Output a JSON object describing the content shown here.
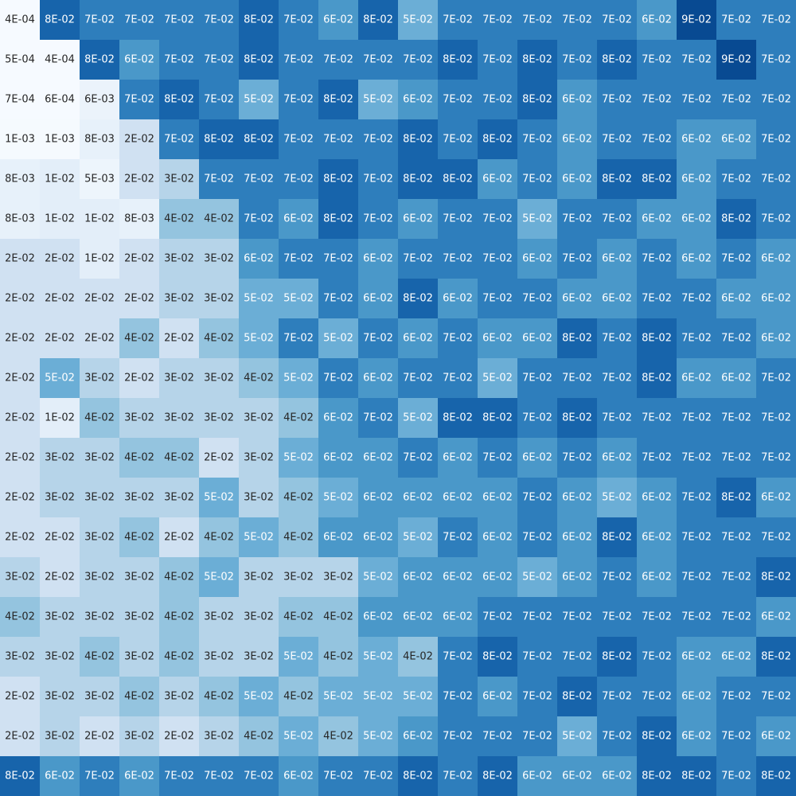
{
  "chart_data": {
    "type": "heatmap",
    "colormap": [
      "#f7fbff",
      "#deebf7",
      "#c6dbef",
      "#9ecae1",
      "#6baed6",
      "#4292c6",
      "#2171b5",
      "#08519c",
      "#08306b"
    ],
    "clim": [
      0,
      0.1
    ],
    "values": [
      [
        0.0004,
        0.08,
        0.07,
        0.07,
        0.07,
        0.07,
        0.08,
        0.07,
        0.06,
        0.08,
        0.05,
        0.07,
        0.07,
        0.07,
        0.07,
        0.07,
        0.06,
        0.09,
        0.07,
        0.07
      ],
      [
        0.0005,
        0.0004,
        0.08,
        0.06,
        0.07,
        0.07,
        0.08,
        0.07,
        0.07,
        0.07,
        0.07,
        0.08,
        0.07,
        0.08,
        0.07,
        0.08,
        0.07,
        0.07,
        0.09,
        0.07
      ],
      [
        0.0007,
        0.0006,
        0.006,
        0.07,
        0.08,
        0.07,
        0.05,
        0.07,
        0.08,
        0.05,
        0.06,
        0.07,
        0.07,
        0.08,
        0.06,
        0.07,
        0.07,
        0.07,
        0.07,
        0.07
      ],
      [
        0.001,
        0.001,
        0.008,
        0.02,
        0.07,
        0.08,
        0.08,
        0.07,
        0.07,
        0.07,
        0.08,
        0.07,
        0.08,
        0.07,
        0.06,
        0.07,
        0.07,
        0.06,
        0.06,
        0.07
      ],
      [
        0.008,
        0.01,
        0.005,
        0.02,
        0.03,
        0.07,
        0.07,
        0.07,
        0.08,
        0.07,
        0.08,
        0.08,
        0.06,
        0.07,
        0.06,
        0.08,
        0.08,
        0.06,
        0.07,
        0.07
      ],
      [
        0.008,
        0.01,
        0.01,
        0.008,
        0.04,
        0.04,
        0.07,
        0.06,
        0.08,
        0.07,
        0.06,
        0.07,
        0.07,
        0.05,
        0.07,
        0.07,
        0.06,
        0.06,
        0.08,
        0.07
      ],
      [
        0.02,
        0.02,
        0.01,
        0.02,
        0.03,
        0.03,
        0.06,
        0.07,
        0.07,
        0.06,
        0.07,
        0.07,
        0.07,
        0.06,
        0.07,
        0.06,
        0.07,
        0.06,
        0.07,
        0.06
      ],
      [
        0.02,
        0.02,
        0.02,
        0.02,
        0.03,
        0.03,
        0.05,
        0.05,
        0.07,
        0.06,
        0.08,
        0.06,
        0.07,
        0.07,
        0.06,
        0.06,
        0.07,
        0.07,
        0.06,
        0.06
      ],
      [
        0.02,
        0.02,
        0.02,
        0.04,
        0.02,
        0.04,
        0.05,
        0.07,
        0.05,
        0.07,
        0.06,
        0.07,
        0.06,
        0.06,
        0.08,
        0.07,
        0.08,
        0.07,
        0.07,
        0.06
      ],
      [
        0.02,
        0.05,
        0.03,
        0.02,
        0.03,
        0.03,
        0.04,
        0.05,
        0.07,
        0.06,
        0.07,
        0.07,
        0.05,
        0.07,
        0.07,
        0.07,
        0.08,
        0.06,
        0.06,
        0.07
      ],
      [
        0.02,
        0.01,
        0.04,
        0.03,
        0.03,
        0.03,
        0.03,
        0.04,
        0.06,
        0.07,
        0.05,
        0.08,
        0.08,
        0.07,
        0.08,
        0.07,
        0.07,
        0.07,
        0.07,
        0.07
      ],
      [
        0.02,
        0.03,
        0.03,
        0.04,
        0.04,
        0.02,
        0.03,
        0.05,
        0.06,
        0.06,
        0.07,
        0.06,
        0.07,
        0.06,
        0.07,
        0.06,
        0.07,
        0.07,
        0.07,
        0.07
      ],
      [
        0.02,
        0.03,
        0.03,
        0.03,
        0.03,
        0.05,
        0.03,
        0.04,
        0.05,
        0.06,
        0.06,
        0.06,
        0.06,
        0.07,
        0.06,
        0.05,
        0.06,
        0.07,
        0.08,
        0.06
      ],
      [
        0.02,
        0.02,
        0.03,
        0.04,
        0.02,
        0.04,
        0.05,
        0.04,
        0.06,
        0.06,
        0.05,
        0.07,
        0.06,
        0.07,
        0.06,
        0.08,
        0.06,
        0.07,
        0.07,
        0.07
      ],
      [
        0.03,
        0.02,
        0.03,
        0.03,
        0.04,
        0.05,
        0.03,
        0.03,
        0.03,
        0.05,
        0.06,
        0.06,
        0.06,
        0.05,
        0.06,
        0.07,
        0.06,
        0.07,
        0.07,
        0.08
      ],
      [
        0.04,
        0.03,
        0.03,
        0.03,
        0.04,
        0.03,
        0.03,
        0.04,
        0.04,
        0.06,
        0.06,
        0.06,
        0.07,
        0.07,
        0.07,
        0.07,
        0.07,
        0.07,
        0.07,
        0.06
      ],
      [
        0.03,
        0.03,
        0.04,
        0.03,
        0.04,
        0.03,
        0.03,
        0.05,
        0.04,
        0.05,
        0.04,
        0.07,
        0.08,
        0.07,
        0.07,
        0.08,
        0.07,
        0.06,
        0.06,
        0.08
      ],
      [
        0.02,
        0.03,
        0.03,
        0.04,
        0.03,
        0.04,
        0.05,
        0.04,
        0.05,
        0.05,
        0.05,
        0.07,
        0.06,
        0.07,
        0.08,
        0.07,
        0.07,
        0.06,
        0.07,
        0.07
      ],
      [
        0.02,
        0.03,
        0.02,
        0.03,
        0.02,
        0.03,
        0.04,
        0.05,
        0.04,
        0.05,
        0.06,
        0.07,
        0.07,
        0.07,
        0.05,
        0.07,
        0.08,
        0.06,
        0.07,
        0.06
      ],
      [
        0.08,
        0.06,
        0.07,
        0.06,
        0.07,
        0.07,
        0.07,
        0.06,
        0.07,
        0.07,
        0.08,
        0.07,
        0.08,
        0.06,
        0.06,
        0.06,
        0.08,
        0.08,
        0.07,
        0.08
      ]
    ],
    "value_labels": [
      [
        "4E-04",
        "8E-02",
        "7E-02",
        "7E-02",
        "7E-02",
        "7E-02",
        "8E-02",
        "7E-02",
        "6E-02",
        "8E-02",
        "5E-02",
        "7E-02",
        "7E-02",
        "7E-02",
        "7E-02",
        "7E-02",
        "6E-02",
        "9E-02",
        "7E-02",
        "7E-02"
      ],
      [
        "5E-04",
        "4E-04",
        "8E-02",
        "6E-02",
        "7E-02",
        "7E-02",
        "8E-02",
        "7E-02",
        "7E-02",
        "7E-02",
        "7E-02",
        "8E-02",
        "7E-02",
        "8E-02",
        "7E-02",
        "8E-02",
        "7E-02",
        "7E-02",
        "9E-02",
        "7E-02"
      ],
      [
        "7E-04",
        "6E-04",
        "6E-03",
        "7E-02",
        "8E-02",
        "7E-02",
        "5E-02",
        "7E-02",
        "8E-02",
        "5E-02",
        "6E-02",
        "7E-02",
        "7E-02",
        "8E-02",
        "6E-02",
        "7E-02",
        "7E-02",
        "7E-02",
        "7E-02",
        "7E-02"
      ],
      [
        "1E-03",
        "1E-03",
        "8E-03",
        "2E-02",
        "7E-02",
        "8E-02",
        "8E-02",
        "7E-02",
        "7E-02",
        "7E-02",
        "8E-02",
        "7E-02",
        "8E-02",
        "7E-02",
        "6E-02",
        "7E-02",
        "7E-02",
        "6E-02",
        "6E-02",
        "7E-02"
      ],
      [
        "8E-03",
        "1E-02",
        "5E-03",
        "2E-02",
        "3E-02",
        "7E-02",
        "7E-02",
        "7E-02",
        "8E-02",
        "7E-02",
        "8E-02",
        "8E-02",
        "6E-02",
        "7E-02",
        "6E-02",
        "8E-02",
        "8E-02",
        "6E-02",
        "7E-02",
        "7E-02"
      ],
      [
        "8E-03",
        "1E-02",
        "1E-02",
        "8E-03",
        "4E-02",
        "4E-02",
        "7E-02",
        "6E-02",
        "8E-02",
        "7E-02",
        "6E-02",
        "7E-02",
        "7E-02",
        "5E-02",
        "7E-02",
        "7E-02",
        "6E-02",
        "6E-02",
        "8E-02",
        "7E-02"
      ],
      [
        "2E-02",
        "2E-02",
        "1E-02",
        "2E-02",
        "3E-02",
        "3E-02",
        "6E-02",
        "7E-02",
        "7E-02",
        "6E-02",
        "7E-02",
        "7E-02",
        "7E-02",
        "6E-02",
        "7E-02",
        "6E-02",
        "7E-02",
        "6E-02",
        "7E-02",
        "6E-02"
      ],
      [
        "2E-02",
        "2E-02",
        "2E-02",
        "2E-02",
        "3E-02",
        "3E-02",
        "5E-02",
        "5E-02",
        "7E-02",
        "6E-02",
        "8E-02",
        "6E-02",
        "7E-02",
        "7E-02",
        "6E-02",
        "6E-02",
        "7E-02",
        "7E-02",
        "6E-02",
        "6E-02"
      ],
      [
        "2E-02",
        "2E-02",
        "2E-02",
        "4E-02",
        "2E-02",
        "4E-02",
        "5E-02",
        "7E-02",
        "5E-02",
        "7E-02",
        "6E-02",
        "7E-02",
        "6E-02",
        "6E-02",
        "8E-02",
        "7E-02",
        "8E-02",
        "7E-02",
        "7E-02",
        "6E-02"
      ],
      [
        "2E-02",
        "5E-02",
        "3E-02",
        "2E-02",
        "3E-02",
        "3E-02",
        "4E-02",
        "5E-02",
        "7E-02",
        "6E-02",
        "7E-02",
        "7E-02",
        "5E-02",
        "7E-02",
        "7E-02",
        "7E-02",
        "8E-02",
        "6E-02",
        "6E-02",
        "7E-02"
      ],
      [
        "2E-02",
        "1E-02",
        "4E-02",
        "3E-02",
        "3E-02",
        "3E-02",
        "3E-02",
        "4E-02",
        "6E-02",
        "7E-02",
        "5E-02",
        "8E-02",
        "8E-02",
        "7E-02",
        "8E-02",
        "7E-02",
        "7E-02",
        "7E-02",
        "7E-02",
        "7E-02"
      ],
      [
        "2E-02",
        "3E-02",
        "3E-02",
        "4E-02",
        "4E-02",
        "2E-02",
        "3E-02",
        "5E-02",
        "6E-02",
        "6E-02",
        "7E-02",
        "6E-02",
        "7E-02",
        "6E-02",
        "7E-02",
        "6E-02",
        "7E-02",
        "7E-02",
        "7E-02",
        "7E-02"
      ],
      [
        "2E-02",
        "3E-02",
        "3E-02",
        "3E-02",
        "3E-02",
        "5E-02",
        "3E-02",
        "4E-02",
        "5E-02",
        "6E-02",
        "6E-02",
        "6E-02",
        "6E-02",
        "7E-02",
        "6E-02",
        "5E-02",
        "6E-02",
        "7E-02",
        "8E-02",
        "6E-02"
      ],
      [
        "2E-02",
        "2E-02",
        "3E-02",
        "4E-02",
        "2E-02",
        "4E-02",
        "5E-02",
        "4E-02",
        "6E-02",
        "6E-02",
        "5E-02",
        "7E-02",
        "6E-02",
        "7E-02",
        "6E-02",
        "8E-02",
        "6E-02",
        "7E-02",
        "7E-02",
        "7E-02"
      ],
      [
        "3E-02",
        "2E-02",
        "3E-02",
        "3E-02",
        "4E-02",
        "5E-02",
        "3E-02",
        "3E-02",
        "3E-02",
        "5E-02",
        "6E-02",
        "6E-02",
        "6E-02",
        "5E-02",
        "6E-02",
        "7E-02",
        "6E-02",
        "7E-02",
        "7E-02",
        "8E-02"
      ],
      [
        "4E-02",
        "3E-02",
        "3E-02",
        "3E-02",
        "4E-02",
        "3E-02",
        "3E-02",
        "4E-02",
        "4E-02",
        "6E-02",
        "6E-02",
        "6E-02",
        "7E-02",
        "7E-02",
        "7E-02",
        "7E-02",
        "7E-02",
        "7E-02",
        "7E-02",
        "6E-02"
      ],
      [
        "3E-02",
        "3E-02",
        "4E-02",
        "3E-02",
        "4E-02",
        "3E-02",
        "3E-02",
        "5E-02",
        "4E-02",
        "5E-02",
        "4E-02",
        "7E-02",
        "8E-02",
        "7E-02",
        "7E-02",
        "8E-02",
        "7E-02",
        "6E-02",
        "6E-02",
        "8E-02"
      ],
      [
        "2E-02",
        "3E-02",
        "3E-02",
        "4E-02",
        "3E-02",
        "4E-02",
        "5E-02",
        "4E-02",
        "5E-02",
        "5E-02",
        "5E-02",
        "7E-02",
        "6E-02",
        "7E-02",
        "8E-02",
        "7E-02",
        "7E-02",
        "6E-02",
        "7E-02",
        "7E-02"
      ],
      [
        "2E-02",
        "3E-02",
        "2E-02",
        "3E-02",
        "2E-02",
        "3E-02",
        "4E-02",
        "5E-02",
        "4E-02",
        "5E-02",
        "6E-02",
        "7E-02",
        "7E-02",
        "7E-02",
        "5E-02",
        "7E-02",
        "8E-02",
        "6E-02",
        "7E-02",
        "6E-02"
      ],
      [
        "8E-02",
        "6E-02",
        "7E-02",
        "6E-02",
        "7E-02",
        "7E-02",
        "7E-02",
        "6E-02",
        "7E-02",
        "7E-02",
        "8E-02",
        "7E-02",
        "8E-02",
        "6E-02",
        "6E-02",
        "6E-02",
        "8E-02",
        "8E-02",
        "7E-02",
        "8E-02"
      ]
    ]
  }
}
